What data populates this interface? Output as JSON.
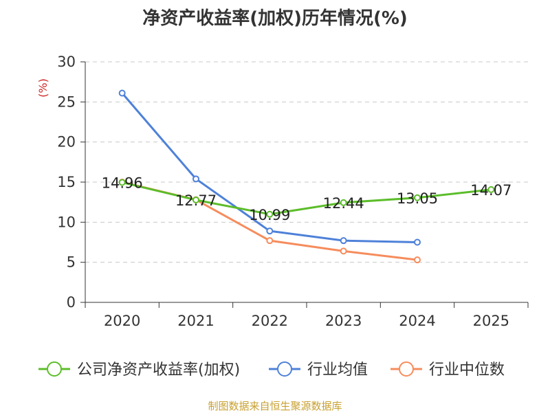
{
  "title": "净资产收益率(加权)历年情况(%)",
  "source": "制图数据来自恒生聚源数据库",
  "colors": {
    "company": "#5cbd2a",
    "avg": "#4e81d9",
    "median": "#f68c5c",
    "unit": "#cc2222"
  },
  "chart_data": {
    "type": "line",
    "title": "净资产收益率(加权)历年情况(%)",
    "ylabel": "(%)",
    "xlabel": "",
    "categories": [
      "2020",
      "2021",
      "2022",
      "2023",
      "2024",
      "2025"
    ],
    "ylim": [
      0,
      30
    ],
    "yticks": [
      0,
      5,
      10,
      15,
      20,
      25,
      30
    ],
    "grid": true,
    "legend_position": "bottom",
    "series": [
      {
        "name": "公司净资产收益率(加权)",
        "values": [
          14.96,
          12.77,
          10.99,
          12.44,
          13.05,
          14.07
        ],
        "labels": [
          "14.96",
          "12.77",
          "10.99",
          "12.44",
          "13.05",
          "14.07"
        ],
        "color": "#5cbd2a"
      },
      {
        "name": "行业均值",
        "values": [
          26.1,
          15.4,
          8.9,
          7.7,
          7.5,
          null
        ],
        "color": "#4e81d9"
      },
      {
        "name": "行业中位数",
        "values": [
          15.0,
          12.8,
          7.7,
          6.4,
          5.3,
          null
        ],
        "color": "#f68c5c"
      }
    ]
  }
}
